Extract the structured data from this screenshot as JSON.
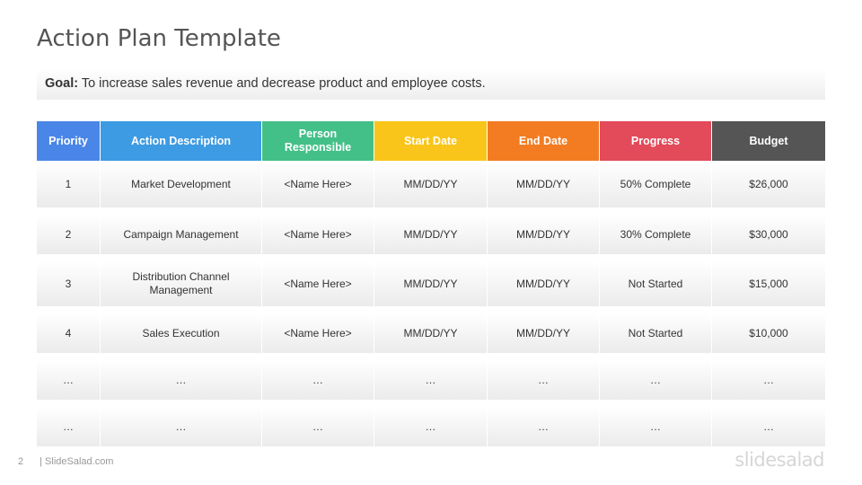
{
  "title": "Action Plan Template",
  "goal": {
    "label": "Goal:",
    "text": " To increase sales revenue and decrease product and employee costs."
  },
  "table": {
    "headers": [
      {
        "label": "Priority",
        "color": "#4A86E8"
      },
      {
        "label": "Action Description",
        "color": "#3D9BE3"
      },
      {
        "label": "Person Responsible",
        "color": "#43C088"
      },
      {
        "label": "Start Date",
        "color": "#F9C51A"
      },
      {
        "label": "End Date",
        "color": "#F37C22"
      },
      {
        "label": "Progress",
        "color": "#E34A5A"
      },
      {
        "label": "Budget",
        "color": "#555555"
      }
    ],
    "rows": [
      [
        "1",
        "Market Development",
        "<Name Here>",
        "MM/DD/YY",
        "MM/DD/YY",
        "50% Complete",
        "$26,000"
      ],
      [
        "2",
        "Campaign Management",
        "<Name Here>",
        "MM/DD/YY",
        "MM/DD/YY",
        "30% Complete",
        "$30,000"
      ],
      [
        "3",
        "Distribution Channel Management",
        "<Name Here>",
        "MM/DD/YY",
        "MM/DD/YY",
        "Not Started",
        "$15,000"
      ],
      [
        "4",
        "Sales Execution",
        "<Name Here>",
        "MM/DD/YY",
        "MM/DD/YY",
        "Not Started",
        "$10,000"
      ],
      [
        "…",
        "…",
        "…",
        "…",
        "…",
        "…",
        "…"
      ],
      [
        "…",
        "…",
        "…",
        "…",
        "…",
        "…",
        "…"
      ]
    ]
  },
  "footer": {
    "page": "2",
    "site": "| SlideSalad.com",
    "brand": "slidesalad"
  }
}
